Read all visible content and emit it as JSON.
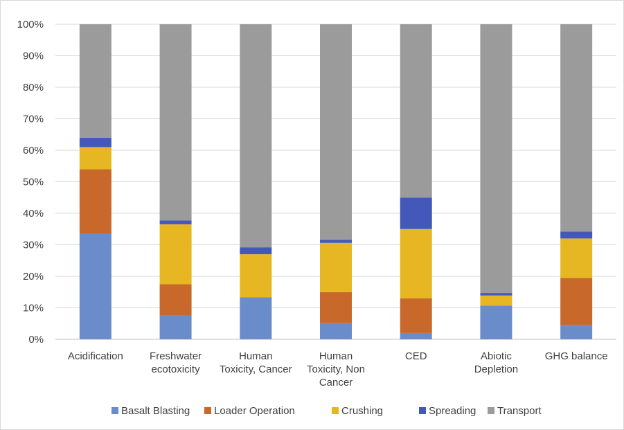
{
  "chart_data": {
    "type": "bar",
    "stacked": true,
    "percent": true,
    "categories": [
      [
        "Acidification"
      ],
      [
        "Freshwater",
        "ecotoxicity"
      ],
      [
        "Human",
        "Toxicity, Cancer"
      ],
      [
        "Human",
        "Toxicity, Non",
        "Cancer"
      ],
      [
        "CED"
      ],
      [
        "Abiotic",
        "Depletion"
      ],
      [
        "GHG balance"
      ]
    ],
    "series": [
      {
        "name": "Basalt Blasting",
        "color": "#6a8ccb",
        "values": [
          33.5,
          7.5,
          13.3,
          5.2,
          2.0,
          10.7,
          4.6
        ]
      },
      {
        "name": "Loader Operation",
        "color": "#c8692b",
        "values": [
          20.5,
          10.0,
          0.0,
          9.8,
          11.0,
          0.0,
          14.9
        ]
      },
      {
        "name": "Crushing",
        "color": "#e6b722",
        "values": [
          7.0,
          19.0,
          13.7,
          15.6,
          22.0,
          3.2,
          12.5
        ]
      },
      {
        "name": "Spreading",
        "color": "#4358b8",
        "values": [
          3.0,
          1.2,
          2.2,
          1.0,
          10.0,
          0.8,
          2.2
        ]
      },
      {
        "name": "Transport",
        "color": "#9b9b9b",
        "values": [
          36.0,
          62.3,
          70.8,
          68.4,
          55.0,
          85.3,
          65.8
        ]
      }
    ],
    "yticks": [
      "0%",
      "10%",
      "20%",
      "30%",
      "40%",
      "50%",
      "60%",
      "70%",
      "80%",
      "90%",
      "100%"
    ],
    "ylim": [
      0,
      100
    ],
    "grid": true,
    "legend": "bottom"
  }
}
